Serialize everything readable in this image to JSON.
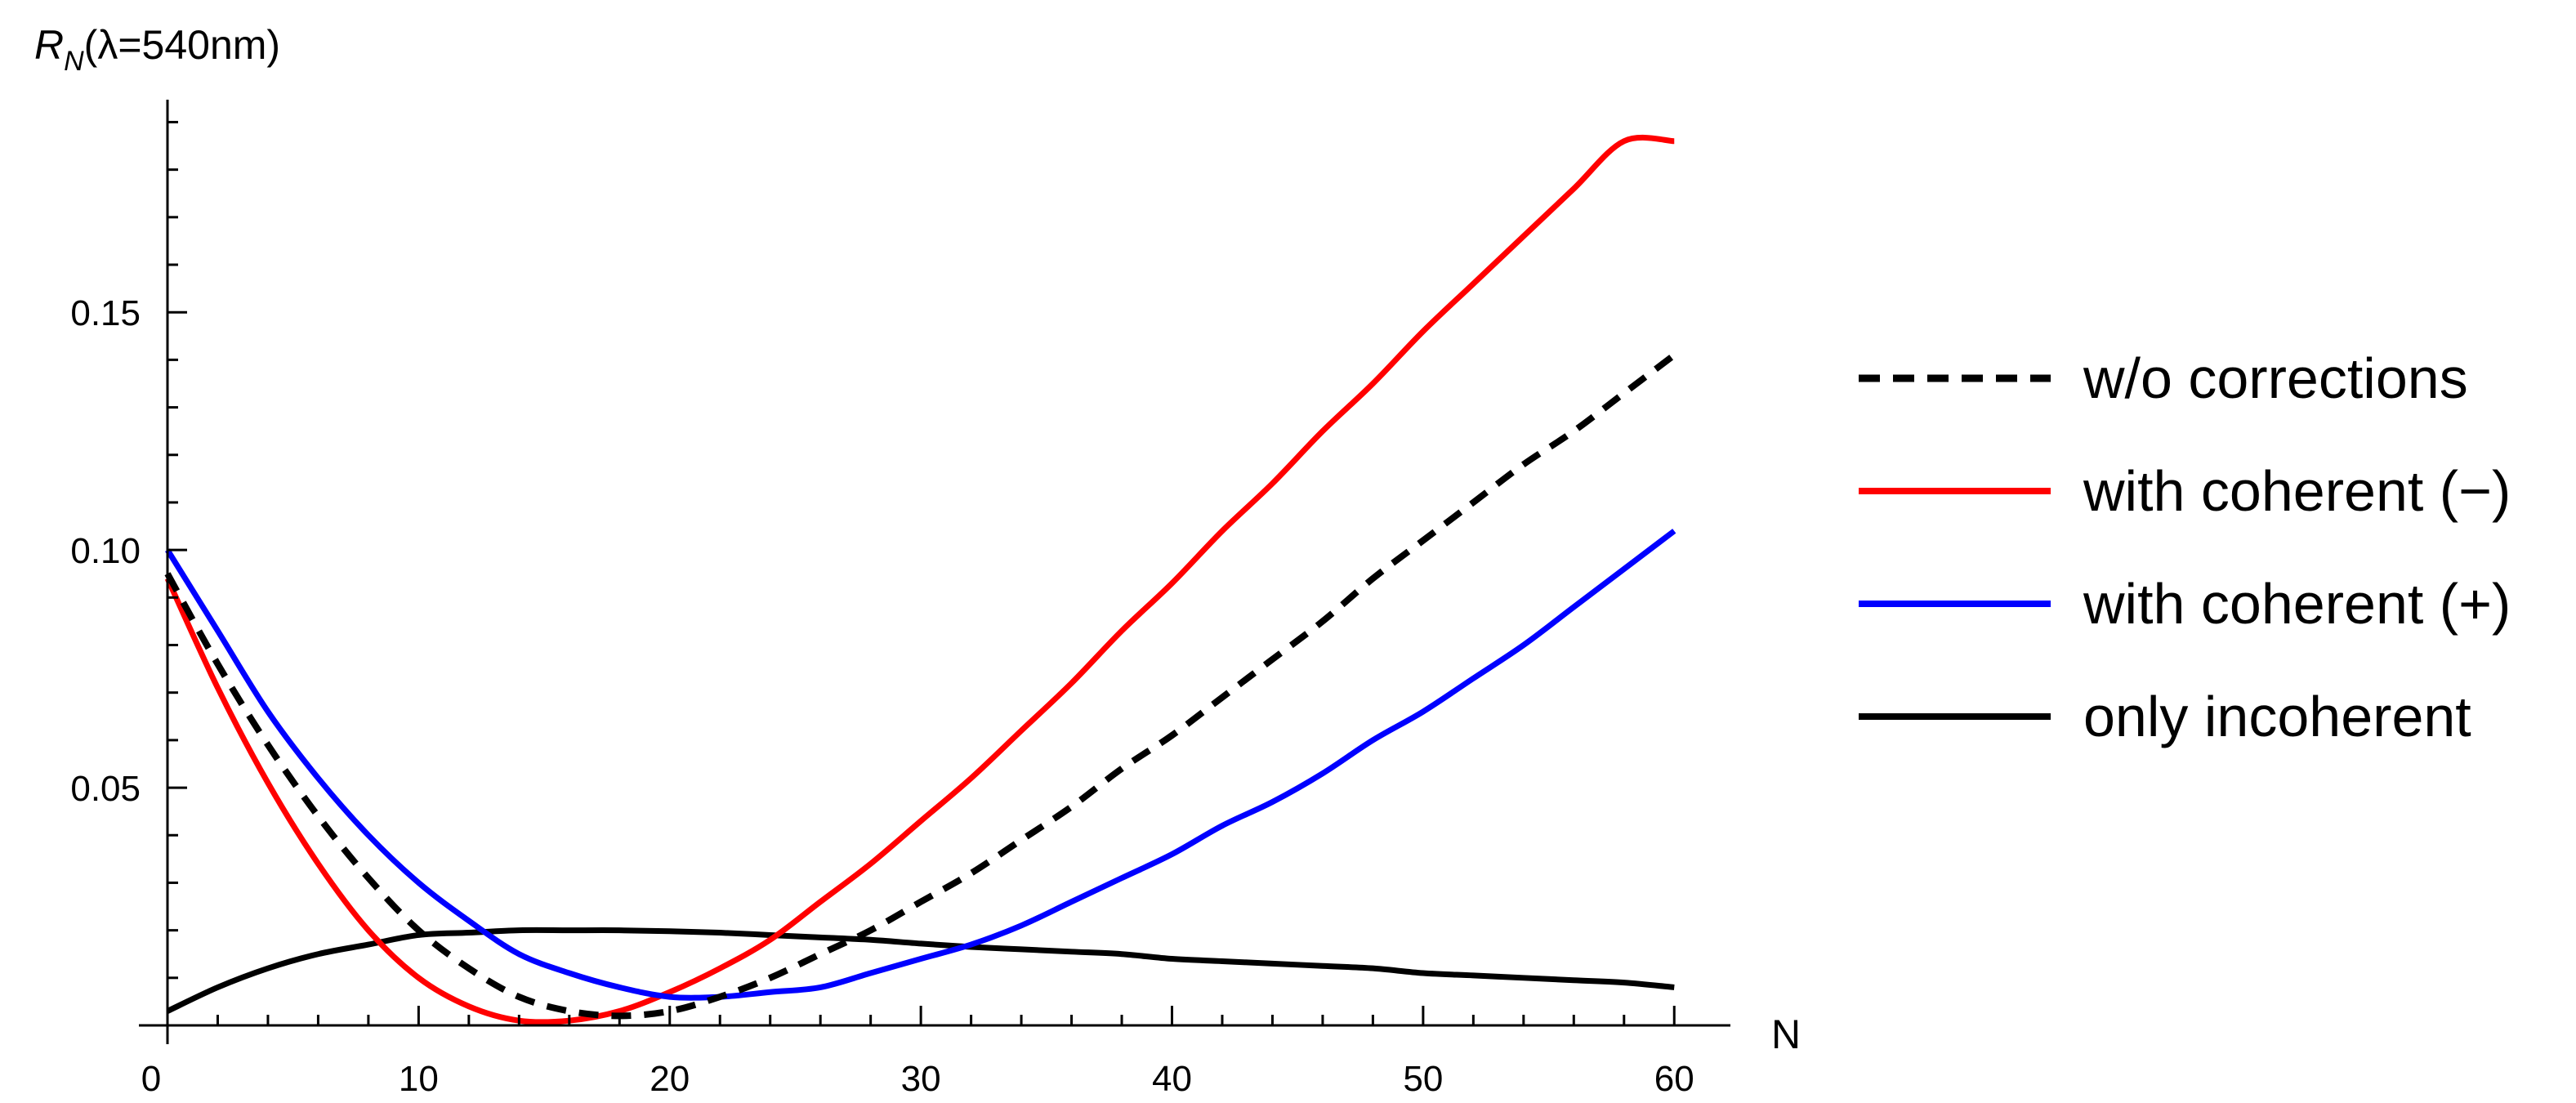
{
  "chart_data": {
    "type": "line",
    "xlabel": "N",
    "ylabel": {
      "main": "R",
      "sub": "N",
      "rest": "(λ=540nm)"
    },
    "xlim": [
      0,
      61
    ],
    "ylim": [
      0,
      0.193
    ],
    "x_ticks": {
      "major": [
        0,
        10,
        20,
        30,
        40,
        50,
        60
      ],
      "major_labels": [
        "0",
        "10",
        "20",
        "30",
        "40",
        "50",
        "60"
      ],
      "minor_step": 2
    },
    "y_ticks": {
      "major": [
        0.05,
        0.1,
        0.15
      ],
      "major_labels": [
        "0.05",
        "0.10",
        "0.15"
      ],
      "minor_step": 0.01
    },
    "grid": false,
    "legend_position": "right",
    "series": [
      {
        "name": "w/o corrections",
        "color": "#000000",
        "dash": "dashed",
        "x": [
          0,
          2,
          4,
          6,
          8,
          10,
          12,
          14,
          16,
          18,
          20,
          22,
          24,
          26,
          28,
          30,
          32,
          34,
          36,
          38,
          40,
          42,
          44,
          46,
          48,
          50,
          52,
          54,
          56,
          58,
          60
        ],
        "y": [
          0.095,
          0.076,
          0.059,
          0.044,
          0.031,
          0.02,
          0.012,
          0.006,
          0.003,
          0.002,
          0.003,
          0.006,
          0.01,
          0.015,
          0.02,
          0.026,
          0.032,
          0.039,
          0.046,
          0.054,
          0.061,
          0.069,
          0.077,
          0.085,
          0.094,
          0.102,
          0.11,
          0.118,
          0.125,
          0.133,
          0.141
        ]
      },
      {
        "name": "with coherent (−)",
        "color": "#ff0000",
        "dash": "solid",
        "x": [
          0,
          2,
          4,
          6,
          8,
          10,
          12,
          14,
          16,
          18,
          20,
          22,
          24,
          26,
          28,
          30,
          32,
          34,
          36,
          38,
          40,
          42,
          44,
          46,
          48,
          50,
          52,
          54,
          56,
          58,
          60
        ],
        "y": [
          0.094,
          0.071,
          0.051,
          0.034,
          0.02,
          0.01,
          0.004,
          0.001,
          0.001,
          0.003,
          0.007,
          0.012,
          0.018,
          0.026,
          0.034,
          0.043,
          0.052,
          0.062,
          0.072,
          0.083,
          0.093,
          0.104,
          0.114,
          0.125,
          0.135,
          0.146,
          0.156,
          0.166,
          0.176,
          0.186,
          0.186
        ]
      },
      {
        "name": "with coherent (+)",
        "color": "#0000ff",
        "dash": "solid",
        "x": [
          0,
          2,
          4,
          6,
          8,
          10,
          12,
          14,
          16,
          18,
          20,
          22,
          24,
          26,
          28,
          30,
          32,
          34,
          36,
          38,
          40,
          42,
          44,
          46,
          48,
          50,
          52,
          54,
          56,
          58,
          60
        ],
        "y": [
          0.1,
          0.083,
          0.066,
          0.052,
          0.04,
          0.03,
          0.022,
          0.015,
          0.011,
          0.008,
          0.006,
          0.006,
          0.007,
          0.008,
          0.011,
          0.014,
          0.017,
          0.021,
          0.026,
          0.031,
          0.036,
          0.042,
          0.047,
          0.053,
          0.06,
          0.066,
          0.073,
          0.08,
          0.088,
          0.096,
          0.104
        ]
      },
      {
        "name": "only incoherent",
        "color": "#000000",
        "dash": "solid",
        "x": [
          0,
          2,
          4,
          6,
          8,
          10,
          12,
          14,
          16,
          18,
          20,
          22,
          24,
          26,
          28,
          30,
          32,
          34,
          36,
          38,
          40,
          42,
          44,
          46,
          48,
          50,
          52,
          54,
          56,
          58,
          60
        ],
        "y": [
          0.003,
          0.008,
          0.012,
          0.015,
          0.017,
          0.019,
          0.0195,
          0.02,
          0.02,
          0.02,
          0.0198,
          0.0195,
          0.019,
          0.0185,
          0.018,
          0.0172,
          0.0165,
          0.016,
          0.0155,
          0.015,
          0.014,
          0.0135,
          0.013,
          0.0125,
          0.012,
          0.011,
          0.0105,
          0.01,
          0.0095,
          0.009,
          0.008
        ]
      }
    ]
  }
}
